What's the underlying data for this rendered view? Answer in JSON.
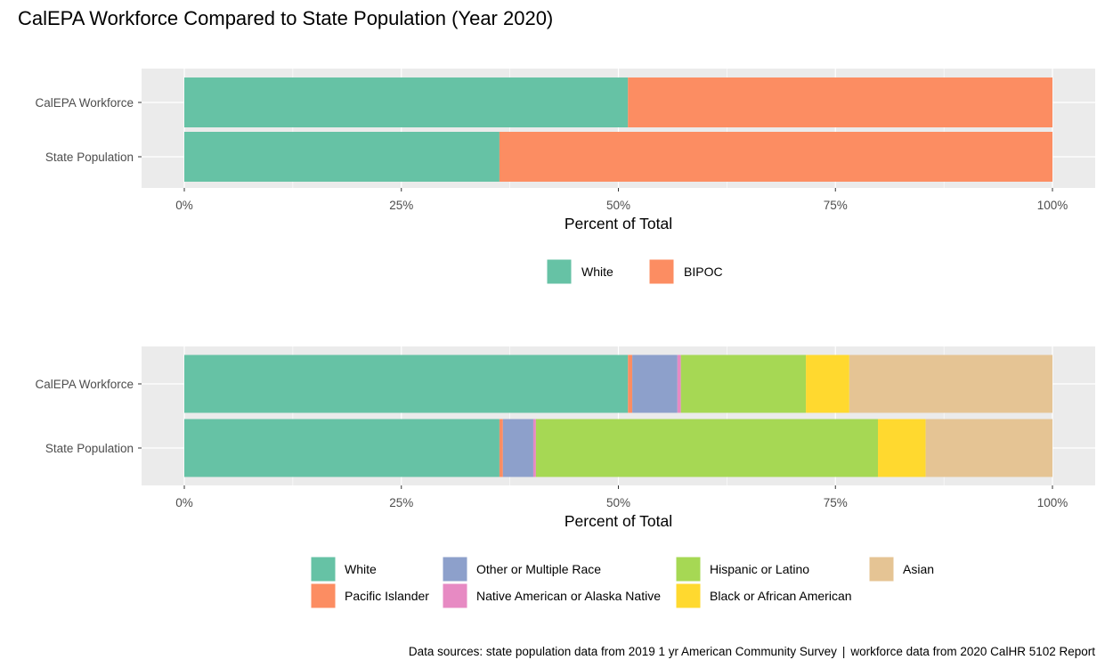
{
  "title": "CalEPA Workforce Compared to State Population (Year 2020)",
  "caption": {
    "part1": "Data sources: state population data from 2019 1 yr American Community Survey",
    "separator": "|",
    "part2": "workforce data from 2020 CalHR 5102 Report"
  },
  "colors": {
    "panel_bg": "#ebebeb",
    "grid": "#ffffff",
    "axis_text": "#4d4d4d",
    "tick": "#333333"
  },
  "chart_data": [
    {
      "type": "bar",
      "orientation": "horizontal",
      "stacked": true,
      "categories": [
        "CalEPA Workforce",
        "State Population"
      ],
      "xlabel": "Percent of Total",
      "xlim": [
        0,
        100
      ],
      "xticks": [
        0,
        25,
        50,
        75,
        100
      ],
      "xtick_labels": [
        "0%",
        "25%",
        "50%",
        "75%",
        "100%"
      ],
      "legend_position": "bottom",
      "series": [
        {
          "name": "White",
          "color": "#66c2a5",
          "values": [
            51.1,
            36.3
          ]
        },
        {
          "name": "BIPOC",
          "color": "#fc8d62",
          "values": [
            48.9,
            63.7
          ]
        }
      ]
    },
    {
      "type": "bar",
      "orientation": "horizontal",
      "stacked": true,
      "categories": [
        "CalEPA Workforce",
        "State Population"
      ],
      "xlabel": "Percent of Total",
      "xlim": [
        0,
        100
      ],
      "xticks": [
        0,
        25,
        50,
        75,
        100
      ],
      "xtick_labels": [
        "0%",
        "25%",
        "50%",
        "75%",
        "100%"
      ],
      "legend_position": "bottom",
      "series": [
        {
          "name": "White",
          "color": "#66c2a5",
          "values": [
            51.1,
            36.3
          ]
        },
        {
          "name": "Pacific Islander",
          "color": "#fc8d62",
          "values": [
            0.5,
            0.4
          ]
        },
        {
          "name": "Other or Multiple Race",
          "color": "#8da0cb",
          "values": [
            5.2,
            3.5
          ]
        },
        {
          "name": "Native American or Alaska Native",
          "color": "#e78ac3",
          "values": [
            0.4,
            0.3
          ]
        },
        {
          "name": "Hispanic or Latino",
          "color": "#a6d854",
          "values": [
            14.4,
            39.4
          ]
        },
        {
          "name": "Black or African American",
          "color": "#ffd92f",
          "values": [
            5.0,
            5.5
          ]
        },
        {
          "name": "Asian",
          "color": "#e5c494",
          "values": [
            23.4,
            14.6
          ]
        }
      ]
    }
  ]
}
